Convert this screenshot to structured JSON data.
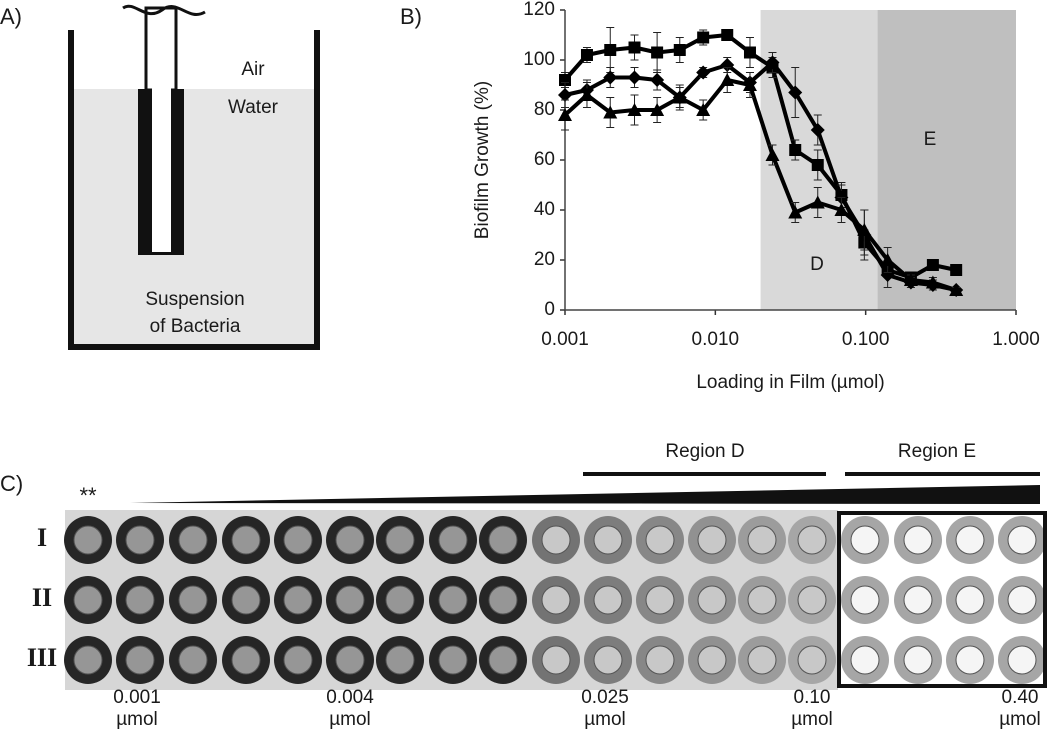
{
  "panel_labels": [
    "A)",
    "B)",
    "C)"
  ],
  "diagram": {
    "air": "Air",
    "water": "Water",
    "suspension": [
      "Suspension",
      "of Bacteria"
    ]
  },
  "chart_data": {
    "type": "line",
    "xlabel": "Loading in Film (µmol)",
    "ylabel": "Biofilm Growth (%)",
    "xscale": "log",
    "xlim": [
      0.001,
      1
    ],
    "xticks": [
      0.001,
      {
        "value": 0.01,
        "label": "0.010"
      },
      {
        "value": 0.1,
        "label": "0.100"
      },
      {
        "value": 1,
        "label": "1.000"
      }
    ],
    "ylim": [
      0,
      120
    ],
    "yticks": [
      0,
      20,
      40,
      60,
      80,
      100,
      120
    ],
    "regions": [
      {
        "label": "D",
        "xlim": [
          0.02,
          0.12
        ],
        "color": "#d9d9d9"
      },
      {
        "label": "E",
        "xlim": [
          0.12,
          1
        ],
        "color": "#bfbfbf"
      }
    ],
    "x": [
      0.001,
      0.0014,
      0.002,
      0.0029,
      0.0041,
      0.0058,
      0.0083,
      0.012,
      0.017,
      0.024,
      0.034,
      0.048,
      0.069,
      0.098,
      0.14,
      0.2,
      0.28,
      0.4
    ],
    "series": [
      {
        "marker": "square",
        "color": "#000000",
        "values": [
          92,
          102,
          104,
          105,
          103,
          104,
          109,
          110,
          103,
          97,
          64,
          58,
          46,
          27,
          16,
          13,
          18,
          16
        ],
        "errors": [
          3,
          3,
          9,
          5,
          8,
          5,
          3,
          2,
          6,
          4,
          4,
          6,
          5,
          5,
          3,
          2,
          2,
          2
        ]
      },
      {
        "marker": "diamond",
        "color": "#000000",
        "values": [
          86,
          88,
          93,
          93,
          92,
          85,
          95,
          98,
          91,
          99,
          87,
          72,
          45,
          30,
          14,
          11,
          10,
          8
        ],
        "errors": [
          5,
          4,
          4,
          4,
          4,
          4,
          2,
          3,
          4,
          4,
          10,
          6,
          5,
          10,
          5,
          2,
          2,
          1
        ]
      },
      {
        "marker": "triangle",
        "color": "#000000",
        "values": [
          78,
          86,
          79,
          80,
          80,
          85,
          80,
          92,
          90,
          62,
          39,
          43,
          40,
          32,
          20,
          12,
          11,
          8
        ],
        "errors": [
          6,
          5,
          6,
          6,
          5,
          5,
          4,
          5,
          5,
          4,
          4,
          6,
          5,
          8,
          5,
          2,
          2,
          1
        ]
      }
    ]
  },
  "plate": {
    "marker": "**",
    "regions": [
      "Region D",
      "Region E"
    ],
    "rows": [
      "I",
      "II",
      "III"
    ],
    "dose_labels": [
      {
        "value": "0.001",
        "unit": "µmol"
      },
      {
        "value": "0.004",
        "unit": "µmol"
      },
      {
        "value": "0.025",
        "unit": "µmol"
      },
      {
        "value": "0.10",
        "unit": "µmol"
      },
      {
        "value": "0.40",
        "unit": "µmol"
      }
    ]
  }
}
